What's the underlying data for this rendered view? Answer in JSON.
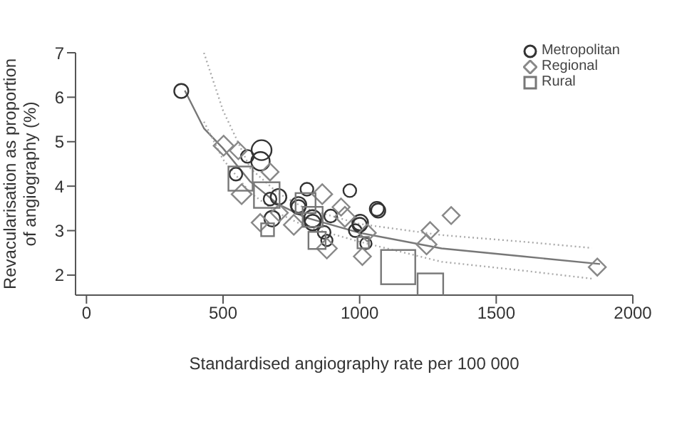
{
  "chart_data": {
    "type": "bubble",
    "xlabel": "Standardised angiography rate per 100 000",
    "ylabel": "Revacularisation as proportion\nof angiography (%)",
    "xlim": [
      -40,
      2000
    ],
    "xticks": [
      0,
      500,
      1000,
      1500,
      2000
    ],
    "ylim": [
      1.55,
      7
    ],
    "yticks": [
      2,
      3,
      4,
      5,
      6,
      7
    ],
    "legend": "top right",
    "series": [
      {
        "name": "Metropolitan",
        "marker": "circle",
        "color": "#333333",
        "x": [
          347,
          641,
          637,
          589,
          547,
          672,
          703,
          807,
          776,
          828,
          894,
          870,
          964,
          1000,
          984,
          680,
          880,
          1063,
          1068,
          1002,
          1023,
          828,
          776
        ],
        "values": [
          6.14,
          4.81,
          4.56,
          4.67,
          4.27,
          3.71,
          3.76,
          3.93,
          3.58,
          3.27,
          3.33,
          2.96,
          3.9,
          3.13,
          3.0,
          3.27,
          2.78,
          3.49,
          3.45,
          3.18,
          2.71,
          3.18,
          3.53
        ],
        "sizes": [
          0.17,
          0.34,
          0.29,
          0.14,
          0.14,
          0.14,
          0.21,
          0.14,
          0.21,
          0.25,
          0.14,
          0.14,
          0.14,
          0.17,
          0.14,
          0.21,
          0.11,
          0.17,
          0.17,
          0.21,
          0.11,
          0.21,
          0.17
        ]
      },
      {
        "name": "Regional",
        "marker": "diamond",
        "color": "#888888",
        "x": [
          502,
          556,
          672,
          568,
          636,
          863,
          759,
          946,
          880,
          1010,
          1028,
          1258,
          1245,
          1335,
          1870,
          706,
          932
        ],
        "values": [
          4.91,
          4.8,
          4.32,
          3.82,
          3.18,
          3.82,
          3.13,
          3.31,
          2.6,
          2.42,
          2.95,
          3.0,
          2.69,
          3.34,
          2.18,
          3.4,
          3.53
        ],
        "sizes": [
          0.17,
          0.125,
          0.125,
          0.17,
          0.125,
          0.17,
          0.17,
          0.17,
          0.17,
          0.125,
          0.125,
          0.125,
          0.17,
          0.125,
          0.125,
          0.125,
          0.125
        ]
      },
      {
        "name": "Rural",
        "marker": "square",
        "color": "#777777",
        "x": [
          564,
          660,
          663,
          802,
          844,
          1141,
          1259,
          828,
          1013
        ],
        "values": [
          4.17,
          3.8,
          3.02,
          3.62,
          2.78,
          2.18,
          1.75,
          3.31,
          2.73
        ],
        "sizes": [
          0.5,
          0.56,
          0.14,
          0.34,
          0.25,
          1,
          0.56,
          0.34,
          0.11
        ]
      },
      {
        "type": "line",
        "color": "#777777",
        "line_style": "solid",
        "x": [
          360,
          430,
          500,
          600,
          700,
          800,
          1000,
          1300,
          1600,
          1880
        ],
        "values": [
          6.15,
          5.3,
          4.85,
          4.1,
          3.6,
          3.3,
          2.95,
          2.6,
          2.42,
          2.25
        ]
      },
      {
        "type": "line",
        "color": "#aaaaaa",
        "line_style": "dotted",
        "x": [
          430,
          500,
          600,
          700,
          800,
          1000,
          1300,
          1600,
          1850
        ],
        "values": [
          7.0,
          5.7,
          4.4,
          3.85,
          3.5,
          3.15,
          2.9,
          2.75,
          2.61
        ]
      },
      {
        "type": "line",
        "color": "#aaaaaa",
        "line_style": "dotted",
        "x": [
          430,
          500,
          600,
          700,
          800,
          1000,
          1300,
          1600,
          1850
        ],
        "values": [
          5.45,
          4.6,
          3.85,
          3.4,
          3.1,
          2.75,
          2.3,
          2.1,
          1.92
        ]
      }
    ]
  }
}
